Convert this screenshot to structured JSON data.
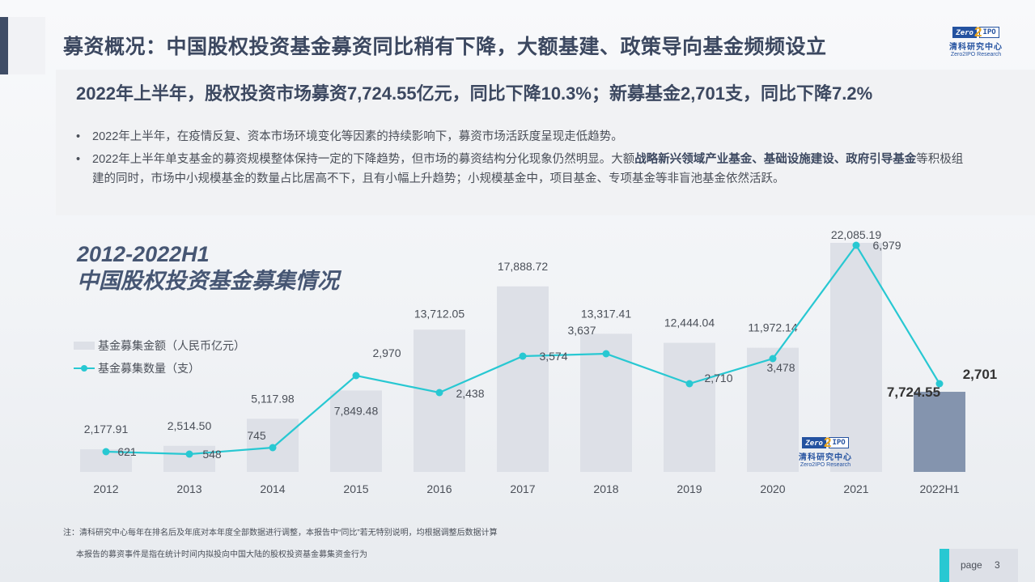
{
  "header": {
    "title": "募资概况：中国股权投资基金募资同比稍有下降，大额基建、政策导向基金频频设立",
    "logo": {
      "zero": "Zero",
      "two": "2",
      "ipo": "IPO",
      "cn": "清科研究中心",
      "en": "Zero2IPO Research"
    }
  },
  "subtitle": "2022年上半年，股权投资市场募资7,724.55亿元，同比下降10.3%；新募基金2,701支，同比下降7.2%",
  "bullets": [
    {
      "text": "2022年上半年，在疫情反复、资本市场环境变化等因素的持续影响下，募资市场活跃度呈现走低趋势。"
    },
    {
      "part1": "2022年上半年单支基金的募资规模整体保持一定的下降趋势，但市场的募资结构分化现象仍然明显。大额",
      "bold": "战略新兴领域产业基金、基础设施建设、政府引导基金",
      "part2": "等积极组建的同时，市场中小规模基金的数量占比居高不下，且有小幅上升趋势；小规模基金中，项目基金、专项基金等非盲池基金依然活跃。"
    }
  ],
  "chart_title": {
    "line1": "2012-2022H1",
    "line2": "中国股权投资基金募集情况"
  },
  "legend": {
    "bar": "基金募集金额（人民币亿元）",
    "line": "基金募集数量（支）"
  },
  "colors": {
    "bar": "#dde0e7",
    "bar_highlight": "#8494ae",
    "line": "#28c8d2",
    "accent": "#3f4d66",
    "title": "#3c4860"
  },
  "chart_data": {
    "type": "bar+line",
    "title": "2012-2022H1 中国股权投资基金募集情况",
    "categories": [
      "2012",
      "2013",
      "2014",
      "2015",
      "2016",
      "2017",
      "2018",
      "2019",
      "2020",
      "2021",
      "2022H1"
    ],
    "series": [
      {
        "name": "基金募集金额（人民币亿元）",
        "type": "bar",
        "values": [
          2177.91,
          2514.5,
          5117.98,
          7849.48,
          13712.05,
          17888.72,
          13317.41,
          12444.04,
          11972.14,
          22085.19,
          7724.55
        ],
        "labels": [
          "2,177.91",
          "2,514.50",
          "5,117.98",
          "7,849.48",
          "13,712.05",
          "17,888.72",
          "13,317.41",
          "12,444.04",
          "11,972.14",
          "22,085.19",
          "7,724.55"
        ]
      },
      {
        "name": "基金募集数量（支）",
        "type": "line",
        "values": [
          621,
          548,
          745,
          2970,
          2438,
          3574,
          3637,
          2710,
          3478,
          6979,
          2701
        ],
        "labels": [
          "621",
          "548",
          "745",
          "2,970",
          "2,438",
          "3,574",
          "3,637",
          "2,710",
          "3,478",
          "6,979",
          "2,701"
        ]
      }
    ],
    "xlabel": "",
    "ylabel": "",
    "grid": false,
    "legend_position": "left"
  },
  "footnotes": [
    "注：清科研究中心每年在排名后及年底对本年度全部数据进行调整，本报告中“同比”若无特别说明，均根据调整后数据计算",
    "本报告的募资事件是指在统计时间内拟投向中国大陆的股权投资基金募集资金行为"
  ],
  "page": {
    "label": "page",
    "number": "3"
  }
}
